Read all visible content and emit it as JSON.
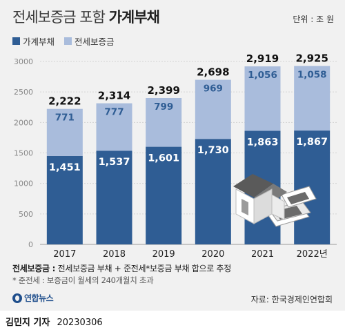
{
  "header": {
    "title_light": "전세보증금 포함",
    "title_bold": "가계부채",
    "unit": "단위 : 조 원"
  },
  "footer": {
    "note1_bold": "전세보증금 :",
    "note1_text": " 전세보증금 부채 + 준전세*보증금 부채 합으로 추정",
    "note2": "* 준전세 : 보증금이 월세의 240개월치 초과",
    "logo_text": "연합뉴스",
    "source": "자료: 한국경제인연합회",
    "credit_name": "김민지 기자",
    "credit_date": "20230306"
  },
  "colors": {
    "household_debt": "#2f5d94",
    "jeonse_deposit": "#a9bcdc",
    "background": "#f1f1f1"
  },
  "icons": [
    "house-illustration-icon",
    "banknotes-icon",
    "yonhap-logo-icon"
  ],
  "chart_data": {
    "type": "bar",
    "stacked": true,
    "categories": [
      "2017",
      "2018",
      "2019",
      "2020",
      "2021",
      "2022년"
    ],
    "series": [
      {
        "name": "가계부채",
        "values": [
          1451,
          1537,
          1601,
          1730,
          1863,
          1867
        ]
      },
      {
        "name": "전세보증금",
        "values": [
          771,
          777,
          799,
          969,
          1056,
          1058
        ]
      }
    ],
    "totals": [
      2222,
      2314,
      2399,
      2698,
      2919,
      2925
    ],
    "value_labels": {
      "household": [
        "1,451",
        "1,537",
        "1,601",
        "1,730",
        "1,863",
        "1,867"
      ],
      "jeonse": [
        "771",
        "777",
        "799",
        "969",
        "1,056",
        "1,058"
      ],
      "totals": [
        "2,222",
        "2,314",
        "2,399",
        "2,698",
        "2,919",
        "2,925"
      ]
    },
    "yticks": [
      0,
      500,
      1000,
      1500,
      2000,
      2500,
      3000
    ],
    "ytick_labels": [
      "0",
      "500",
      "1000",
      "1500",
      "2000",
      "2500",
      "3000"
    ],
    "ylim": [
      0,
      3000
    ],
    "grid": true,
    "legend": "top-left"
  }
}
